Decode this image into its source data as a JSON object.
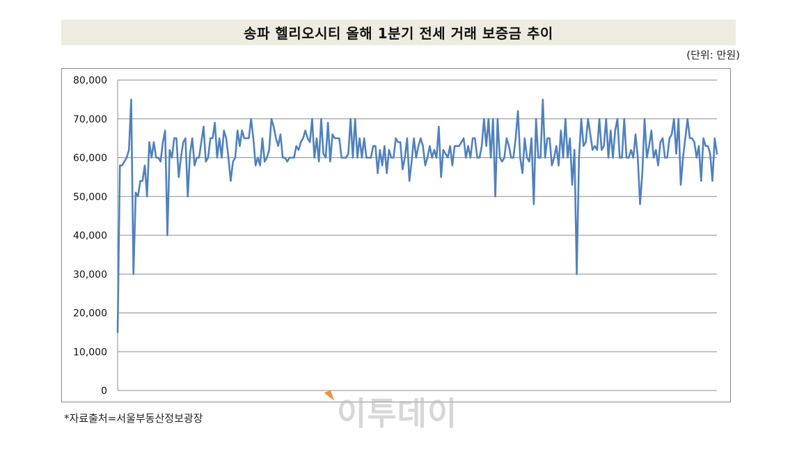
{
  "chart_data": {
    "type": "line",
    "title": "송파 헬리오시티 올해 1분기 전세 거래 보증금 추이",
    "unit": "(단위: 만원)",
    "source": "*자료출처=서울부동산정보광장",
    "watermark": "이투데이",
    "xlabel": "",
    "ylabel": "",
    "ylim": [
      0,
      80000
    ],
    "y_ticks": [
      "0",
      "10,000",
      "20,000",
      "30,000",
      "40,000",
      "50,000",
      "60,000",
      "70,000",
      "80,000"
    ],
    "grid": "horizontal",
    "legend": "none",
    "series_color": "#4f81bd",
    "values": [
      15000,
      58000,
      58000,
      59000,
      60000,
      62000,
      75000,
      30000,
      51000,
      50000,
      54000,
      54000,
      58000,
      50000,
      64000,
      60000,
      64000,
      60000,
      60000,
      59000,
      64000,
      67000,
      40000,
      62000,
      60000,
      65000,
      65000,
      55000,
      60000,
      64000,
      65000,
      50000,
      61000,
      65000,
      58000,
      60000,
      60000,
      64000,
      68000,
      59000,
      60000,
      65000,
      65000,
      69000,
      60000,
      65000,
      60000,
      67000,
      65000,
      60000,
      54000,
      59000,
      60000,
      67000,
      63000,
      67000,
      65000,
      65000,
      65000,
      70000,
      65000,
      58000,
      60000,
      58000,
      65000,
      59000,
      60000,
      62000,
      70000,
      68000,
      65000,
      63000,
      66000,
      60000,
      60000,
      59000,
      60000,
      60000,
      60000,
      63000,
      62000,
      64000,
      65000,
      67000,
      65000,
      64000,
      70000,
      60000,
      65000,
      59000,
      70000,
      61000,
      60000,
      69000,
      59000,
      66000,
      65000,
      65000,
      65000,
      60000,
      60000,
      60000,
      61000,
      70000,
      60000,
      70000,
      60000,
      65000,
      60000,
      65000,
      60000,
      60000,
      60000,
      63000,
      63000,
      56000,
      62000,
      58000,
      63000,
      56000,
      62000,
      60000,
      60000,
      65000,
      64000,
      64000,
      57000,
      60000,
      65000,
      54000,
      59000,
      65000,
      60000,
      63000,
      65000,
      63000,
      58000,
      60000,
      63000,
      60000,
      62000,
      60000,
      68000,
      55000,
      62000,
      61000,
      60000,
      63000,
      58000,
      63000,
      63000,
      63000,
      64000,
      65000,
      60000,
      63000,
      60000,
      65000,
      65000,
      60000,
      60000,
      63000,
      70000,
      63000,
      70000,
      60000,
      70000,
      50000,
      70000,
      60000,
      59000,
      60000,
      65000,
      63000,
      60000,
      60000,
      65000,
      72000,
      60000,
      56000,
      65000,
      60000,
      59000,
      65000,
      48000,
      70000,
      60000,
      60000,
      75000,
      60000,
      65000,
      65000,
      58000,
      60000,
      63000,
      58000,
      67000,
      60000,
      70000,
      60000,
      65000,
      53000,
      62000,
      30000,
      60000,
      70000,
      63000,
      64000,
      70000,
      66000,
      62000,
      63000,
      62000,
      70000,
      62000,
      63000,
      70000,
      60000,
      67000,
      60000,
      67000,
      70000,
      60000,
      60000,
      70000,
      60000,
      60000,
      62000,
      60000,
      66000,
      60000,
      48000,
      56000,
      70000,
      60000,
      63000,
      67000,
      60000,
      62000,
      58000,
      64000,
      65000,
      60000,
      60000,
      65000,
      66000,
      70000,
      61000,
      70000,
      53000,
      60000,
      65000,
      70000,
      65000,
      65000,
      64000,
      60000,
      63000,
      54000,
      65000,
      63000,
      63000,
      61000,
      54000,
      65000,
      61000
    ]
  }
}
